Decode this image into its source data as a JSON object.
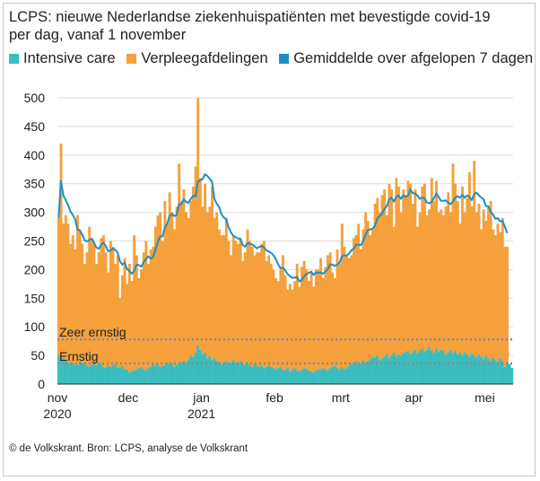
{
  "chart_data": {
    "type": "bar",
    "title_line1": "LCPS: nieuwe Nederlandse ziekenhuispatiënten met bevestigde covid-19",
    "title_line2": "per dag, vanaf 1 november",
    "legend": [
      {
        "label": "Intensive care",
        "color": "#3bbdbf"
      },
      {
        "label": "Verpleegafdelingen",
        "color": "#f5a03b"
      },
      {
        "label": "Gemiddelde over afgelopen 7 dagen",
        "color": "#1f8ec4"
      }
    ],
    "colors": {
      "ic": "#3bbdbf",
      "ward": "#f5a03b",
      "avg": "#1f8ec4",
      "grid": "#dddddd",
      "ref": "#888888"
    },
    "ylim": [
      0,
      500
    ],
    "yticks": [
      "0",
      "50",
      "100",
      "150",
      "200",
      "250",
      "300",
      "350",
      "400",
      "450",
      "500"
    ],
    "yvalues": [
      0,
      50,
      100,
      150,
      200,
      250,
      300,
      350,
      400,
      450,
      500
    ],
    "xticks": [
      {
        "day": 0,
        "label": "nov",
        "sub": "2020"
      },
      {
        "day": 30,
        "label": "dec",
        "sub": ""
      },
      {
        "day": 61,
        "label": "jan",
        "sub": "2021"
      },
      {
        "day": 92,
        "label": "feb",
        "sub": ""
      },
      {
        "day": 120,
        "label": "mrt",
        "sub": ""
      },
      {
        "day": 151,
        "label": "apr",
        "sub": ""
      },
      {
        "day": 181,
        "label": "mei",
        "sub": ""
      }
    ],
    "reference_lines": [
      {
        "label": "Zeer ernstig",
        "value": 78
      },
      {
        "label": "Ernstig",
        "value": 36
      }
    ],
    "start_date": "2020-11-01",
    "num_days": 193,
    "ic": [
      50,
      42,
      46,
      40,
      35,
      38,
      36,
      34,
      33,
      40,
      38,
      35,
      32,
      30,
      34,
      35,
      33,
      38,
      36,
      30,
      28,
      32,
      30,
      33,
      35,
      28,
      30,
      32,
      26,
      25,
      20,
      22,
      24,
      25,
      28,
      30,
      26,
      24,
      28,
      30,
      34,
      32,
      35,
      30,
      32,
      33,
      38,
      35,
      36,
      30,
      34,
      36,
      38,
      40,
      38,
      42,
      50,
      48,
      55,
      68,
      60,
      52,
      55,
      45,
      48,
      42,
      45,
      40,
      38,
      35,
      38,
      40,
      36,
      38,
      42,
      38,
      36,
      40,
      35,
      34,
      36,
      33,
      30,
      35,
      32,
      30,
      32,
      28,
      30,
      33,
      30,
      28,
      26,
      28,
      30,
      25,
      24,
      28,
      22,
      26,
      28,
      24,
      22,
      25,
      28,
      26,
      24,
      22,
      20,
      24,
      26,
      25,
      28,
      26,
      24,
      28,
      30,
      32,
      28,
      25,
      30,
      26,
      28,
      32,
      35,
      38,
      40,
      35,
      36,
      42,
      38,
      40,
      44,
      48,
      46,
      50,
      42,
      45,
      48,
      52,
      45,
      50,
      55,
      48,
      52,
      50,
      54,
      56,
      58,
      52,
      55,
      60,
      54,
      58,
      62,
      56,
      60,
      65,
      58,
      54,
      62,
      56,
      60,
      58,
      52,
      55,
      60,
      54,
      58,
      52,
      55,
      50,
      56,
      52,
      48,
      54,
      50,
      46,
      52,
      48,
      44,
      50,
      45,
      40,
      46,
      42,
      38,
      45,
      40,
      30,
      38,
      35,
      28
    ],
    "total": [
      290,
      420,
      280,
      295,
      280,
      245,
      260,
      235,
      295,
      270,
      245,
      210,
      230,
      275,
      255,
      245,
      210,
      230,
      255,
      260,
      230,
      195,
      250,
      240,
      210,
      225,
      150,
      190,
      220,
      175,
      210,
      180,
      260,
      225,
      185,
      200,
      230,
      250,
      210,
      235,
      240,
      275,
      295,
      300,
      250,
      320,
      280,
      335,
      300,
      270,
      310,
      385,
      320,
      340,
      300,
      290,
      320,
      345,
      380,
      500,
      360,
      310,
      350,
      300,
      310,
      345,
      290,
      300,
      270,
      260,
      260,
      290,
      250,
      225,
      260,
      250,
      245,
      255,
      215,
      230,
      270,
      250,
      240,
      225,
      230,
      230,
      245,
      250,
      215,
      225,
      210,
      200,
      185,
      180,
      200,
      225,
      190,
      165,
      175,
      165,
      180,
      210,
      170,
      205,
      215,
      200,
      180,
      195,
      170,
      200,
      200,
      220,
      185,
      205,
      225,
      230,
      195,
      185,
      235,
      210,
      280,
      240,
      225,
      220,
      225,
      255,
      260,
      280,
      235,
      270,
      300,
      285,
      260,
      270,
      315,
      325,
      300,
      330,
      340,
      295,
      350,
      340,
      275,
      360,
      345,
      300,
      340,
      330,
      355,
      350,
      315,
      340,
      275,
      300,
      345,
      350,
      295,
      305,
      360,
      320,
      355,
      300,
      305,
      295,
      310,
      335,
      300,
      385,
      350,
      320,
      280,
      345,
      300,
      325,
      370,
      310,
      390,
      300,
      315,
      270,
      305,
      285,
      310,
      320,
      270,
      260,
      280,
      265,
      290,
      240,
      240
    ]
  },
  "footer": {
    "source": "© de Volkskrant. Bron: LCPS, analyse de Volkskrant"
  }
}
